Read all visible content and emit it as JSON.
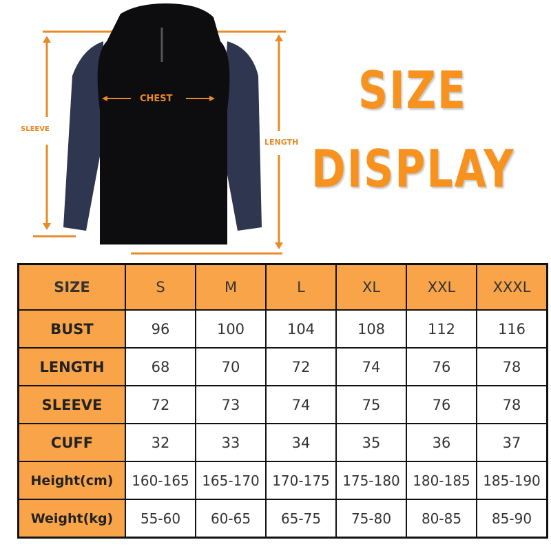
{
  "image_labels": {
    "chest": "CHEST",
    "sleeve": "SLEEVE",
    "length": "LENGTH"
  },
  "title": {
    "line1": "SIZE",
    "line2": "DISPLAY"
  },
  "colors": {
    "accent": "#f7921e",
    "header_fill": "#f9a449",
    "shirt_body": "#0d0d10",
    "shirt_sleeve": "#2e3650"
  },
  "table": {
    "header": [
      "SIZE",
      "S",
      "M",
      "L",
      "XL",
      "XXL",
      "XXXL"
    ],
    "rows": [
      [
        "BUST",
        "96",
        "100",
        "104",
        "108",
        "112",
        "116"
      ],
      [
        "LENGTH",
        "68",
        "70",
        "72",
        "74",
        "76",
        "78"
      ],
      [
        "SLEEVE",
        "72",
        "73",
        "74",
        "75",
        "76",
        "78"
      ],
      [
        "CUFF",
        "32",
        "33",
        "34",
        "35",
        "36",
        "37"
      ],
      [
        "Height(cm)",
        "160-165",
        "165-170",
        "170-175",
        "175-180",
        "180-185",
        "185-190"
      ],
      [
        "Weight(kg)",
        "55-60",
        "60-65",
        "65-75",
        "75-80",
        "80-85",
        "85-90"
      ]
    ]
  }
}
